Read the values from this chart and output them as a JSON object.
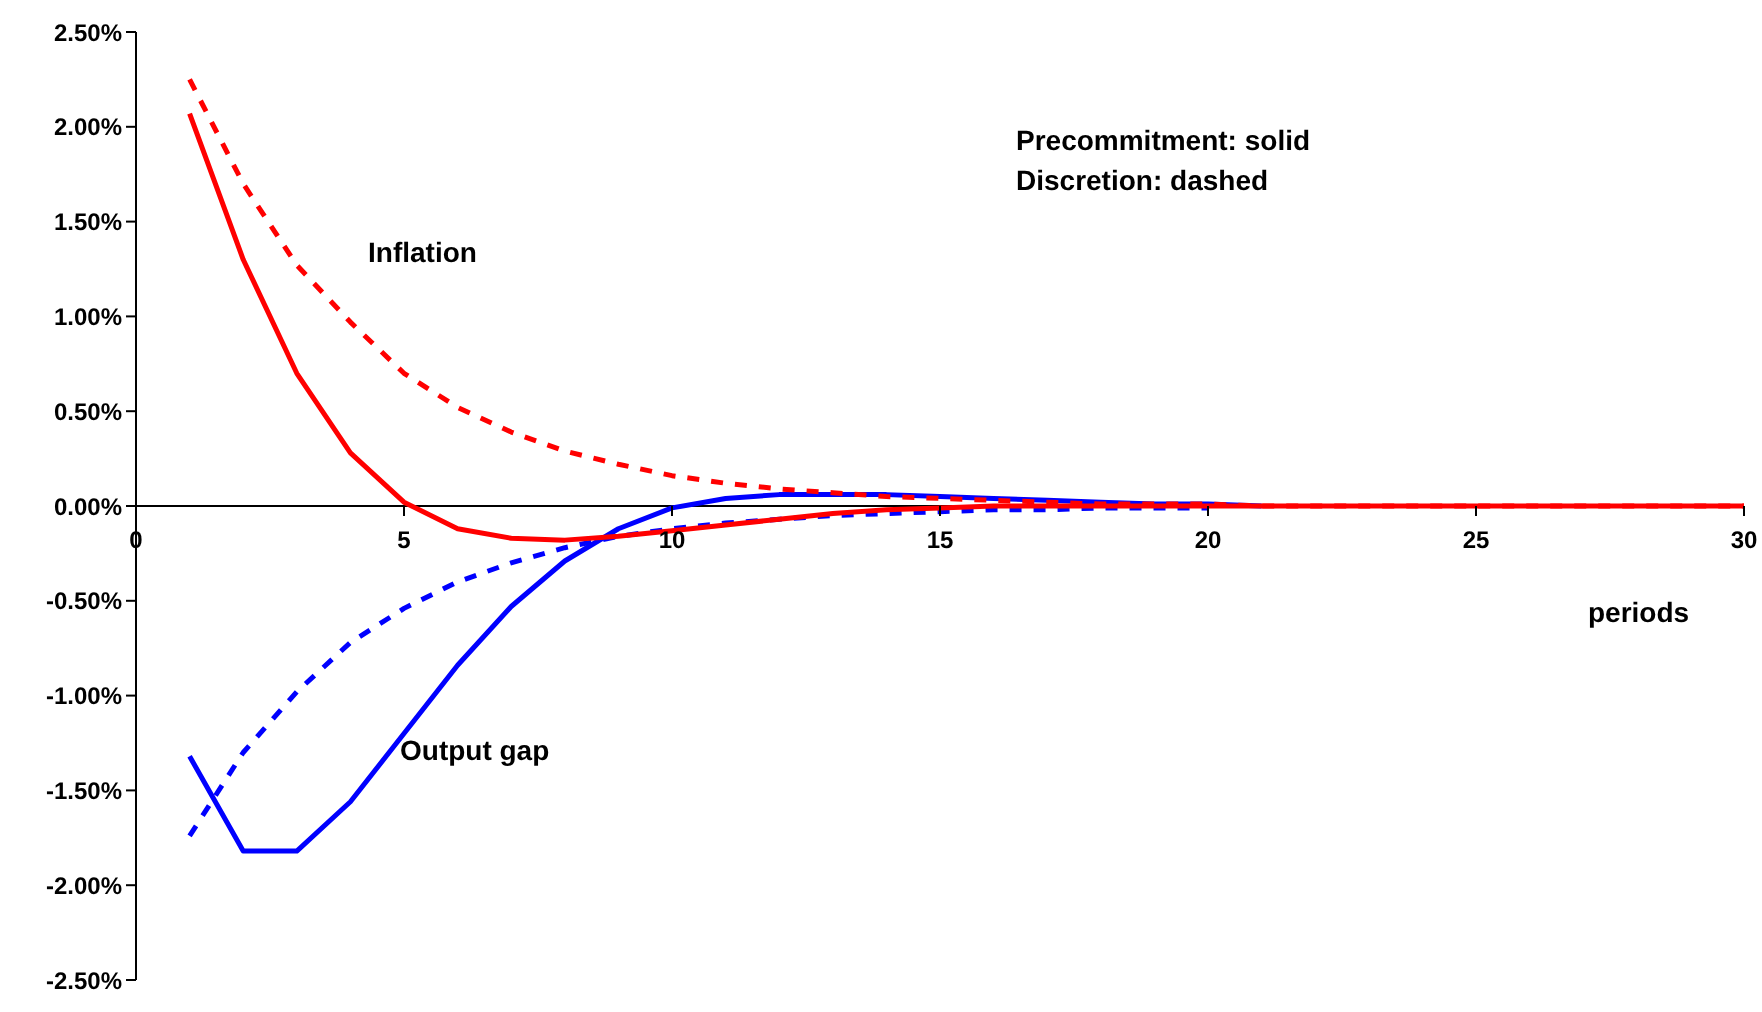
{
  "chart_data": {
    "type": "line",
    "xlabel": "periods",
    "annotations": [
      "Inflation",
      "Output gap",
      "Precommitment: solid",
      "Discretion: dashed"
    ],
    "x": [
      1,
      2,
      3,
      4,
      5,
      6,
      7,
      8,
      9,
      10,
      11,
      12,
      13,
      14,
      15,
      16,
      17,
      18,
      19,
      20,
      21,
      22,
      23,
      24,
      25,
      26,
      27,
      28,
      29,
      30
    ],
    "series": [
      {
        "color": "#0000ff",
        "line_style": "dashed",
        "values": [
          -1.74,
          -1.3,
          -0.98,
          -0.72,
          -0.54,
          -0.4,
          -0.3,
          -0.22,
          -0.16,
          -0.12,
          -0.09,
          -0.07,
          -0.05,
          -0.04,
          -0.03,
          -0.02,
          -0.02,
          -0.01,
          -0.01,
          -0.01,
          null,
          null,
          null,
          null,
          null,
          null,
          null,
          null,
          null,
          null
        ]
      },
      {
        "color": "#0000ff",
        "line_style": "solid",
        "values": [
          -1.32,
          -1.82,
          -1.82,
          -1.56,
          -1.2,
          -0.84,
          -0.53,
          -0.29,
          -0.12,
          -0.01,
          0.04,
          0.06,
          0.06,
          0.06,
          0.05,
          0.04,
          0.03,
          0.02,
          0.01,
          0.01,
          0,
          null,
          null,
          null,
          null,
          null,
          null,
          null,
          null,
          null
        ]
      },
      {
        "color": "#ff0000",
        "line_style": "solid",
        "values": [
          2.07,
          1.3,
          0.7,
          0.28,
          0.02,
          -0.12,
          -0.17,
          -0.18,
          -0.16,
          -0.13,
          -0.1,
          -0.07,
          -0.04,
          -0.02,
          -0.01,
          0,
          0,
          0,
          0,
          0,
          0,
          0,
          0,
          0,
          0,
          0,
          0,
          0,
          0,
          0
        ]
      },
      {
        "color": "#ff0000",
        "line_style": "dashed",
        "values": [
          2.25,
          1.7,
          1.27,
          0.97,
          0.7,
          0.52,
          0.39,
          0.29,
          0.22,
          0.16,
          0.12,
          0.09,
          0.07,
          0.05,
          0.04,
          0.03,
          0.02,
          0.01,
          0.01,
          0.01,
          0,
          0,
          0,
          0,
          0,
          0,
          0,
          0,
          0,
          0
        ]
      }
    ],
    "marker": "none",
    "xlim": [
      0,
      30
    ],
    "xticks": [
      0,
      5,
      10,
      15,
      20,
      25,
      30
    ],
    "ylim": [
      -2.5,
      2.5
    ],
    "yticks": [
      {
        "value": -2.5,
        "label": "-2.50%"
      },
      {
        "value": -2,
        "label": "-2.00%"
      },
      {
        "value": -1.5,
        "label": "-1.50%"
      },
      {
        "value": -1,
        "label": "-1.00%"
      },
      {
        "value": -0.5,
        "label": "-0.50%"
      },
      {
        "value": 0,
        "label": "0.00%"
      },
      {
        "value": 0.5,
        "label": "0.50%"
      },
      {
        "value": 1,
        "label": "1.00%"
      },
      {
        "value": 1.5,
        "label": "1.50%"
      },
      {
        "value": 2,
        "label": "2.00%"
      },
      {
        "value": 2.5,
        "label": "2.50%"
      }
    ],
    "grid": false,
    "legend": false
  }
}
